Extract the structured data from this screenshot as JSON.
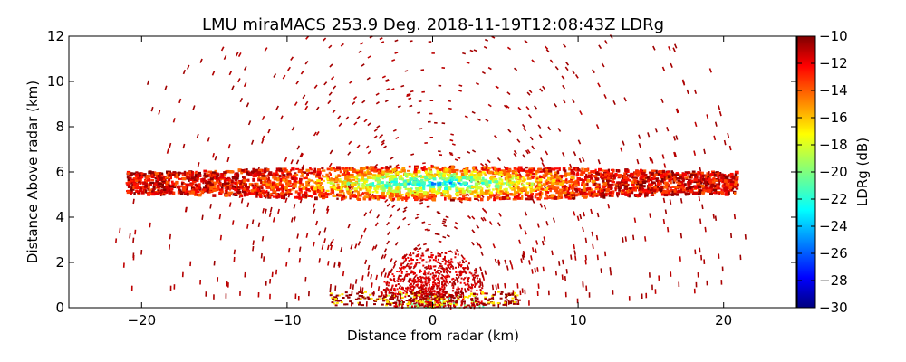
{
  "chart_data": {
    "type": "heatmap",
    "title": "LMU miraMACS 253.9 Deg. 2018-11-19T12:08:43Z  LDRg",
    "xlabel": "Distance from radar (km)",
    "ylabel": "Distance Above radar  (km)",
    "xlim": [
      -25,
      25
    ],
    "ylim": [
      0,
      12
    ],
    "x_ticks": [
      -20,
      -10,
      0,
      10,
      20
    ],
    "y_ticks": [
      0,
      2,
      4,
      6,
      8,
      10,
      12
    ],
    "colorbar": {
      "label": "LDRg (dB)",
      "colormap": "jet",
      "range": [
        -30,
        -10
      ],
      "ticks": [
        -10,
        -12,
        -14,
        -16,
        -18,
        -20,
        -22,
        -24,
        -26,
        -28,
        -30
      ]
    },
    "features": [
      {
        "name": "cloud layer",
        "x_range": [
          -21,
          21
        ],
        "y_center_at_x0": 5.5,
        "thickness_km": 1.5,
        "ldr_core_db": -23,
        "ldr_edge_db": -12
      },
      {
        "name": "near-surface clutter",
        "x_range": [
          -6,
          6
        ],
        "y_range": [
          0,
          2.5
        ],
        "ldr_db": -11
      },
      {
        "name": "sparse noise",
        "x_range": [
          -22,
          22
        ],
        "y_range": [
          0,
          12
        ],
        "ldr_db": -10.5
      }
    ]
  }
}
